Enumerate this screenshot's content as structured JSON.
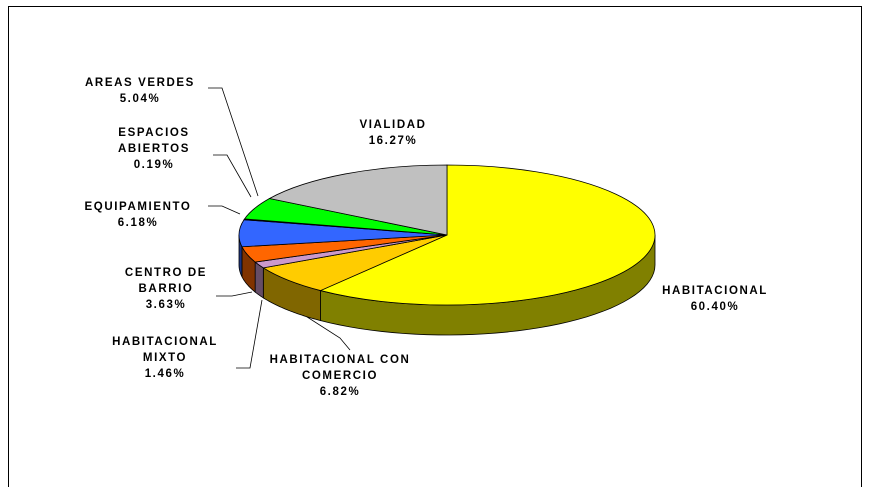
{
  "chart_data": {
    "type": "pie3d",
    "categories": [
      "HABITACIONAL",
      "HABITACIONAL CON COMERCIO",
      "HABITACIONAL MIXTO",
      "CENTRO DE BARRIO",
      "EQUIPAMIENTO",
      "ESPACIOS ABIERTOS",
      "AREAS VERDES",
      "VIALIDAD"
    ],
    "values": [
      60.4,
      6.82,
      1.46,
      3.63,
      6.18,
      0.19,
      5.04,
      16.27
    ],
    "value_labels": [
      "60.40%",
      "6.82%",
      "1.46%",
      "3.63%",
      "6.18%",
      "0.19%",
      "5.04%",
      "16.27%"
    ],
    "colors": [
      "#FFFF00",
      "#FFCC00",
      "#CC99CC",
      "#FF6600",
      "#3366FF",
      "#333399",
      "#00FF00",
      "#C0C0C0"
    ]
  }
}
